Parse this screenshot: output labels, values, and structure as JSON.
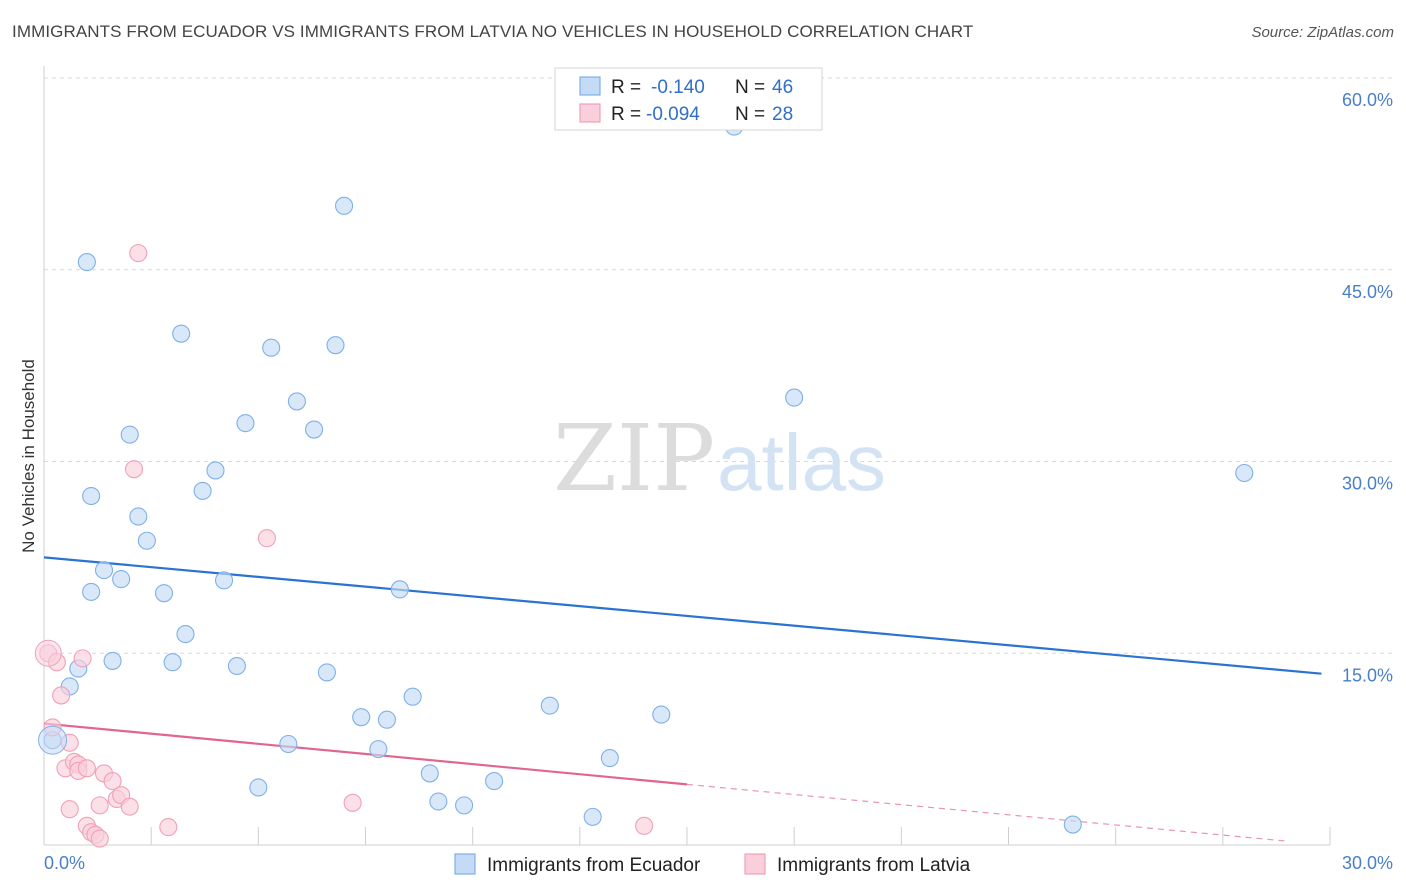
{
  "chart_data": {
    "type": "scatter",
    "title": "IMMIGRANTS FROM ECUADOR VS IMMIGRANTS FROM LATVIA NO VEHICLES IN HOUSEHOLD CORRELATION CHART",
    "source": "Source: ZipAtlas.com",
    "xlabel": "",
    "ylabel": "No Vehicles in Household",
    "xlim": [
      0,
      30
    ],
    "ylim": [
      0,
      60
    ],
    "x_tick_labels": {
      "min": "0.0%",
      "max": "30.0%"
    },
    "y_ticks": [
      {
        "value": 15,
        "label": "15.0%"
      },
      {
        "value": 30,
        "label": "30.0%"
      },
      {
        "value": 45,
        "label": "45.0%"
      },
      {
        "value": 60,
        "label": "60.0%"
      }
    ],
    "watermark": {
      "zip": "ZIP",
      "atlas": "atlas"
    },
    "stats_legend": {
      "r_label": "R =",
      "n_label": "N =",
      "rows": [
        {
          "series": "Immigrants from Ecuador",
          "r": "-0.140",
          "n": "46"
        },
        {
          "series": "Immigrants from Latvia",
          "r": "-0.094",
          "n": "28"
        }
      ]
    },
    "series": [
      {
        "name": "Immigrants from Ecuador",
        "color": "#7fb0e8",
        "fill": "#c5dbf5",
        "line_color": "#2b73d1",
        "trend": {
          "x0": 0,
          "y0": 22.5,
          "x1": 29.8,
          "y1": 13.4,
          "solid_until": 29.8
        },
        "points": [
          [
            0.2,
            8.2
          ],
          [
            0.6,
            12.4
          ],
          [
            0.8,
            13.8
          ],
          [
            1.0,
            45.6
          ],
          [
            1.1,
            27.3
          ],
          [
            1.1,
            19.8
          ],
          [
            1.4,
            21.5
          ],
          [
            1.6,
            14.4
          ],
          [
            1.8,
            20.8
          ],
          [
            2.0,
            32.1
          ],
          [
            2.2,
            25.7
          ],
          [
            2.4,
            23.8
          ],
          [
            2.8,
            19.7
          ],
          [
            3.0,
            14.3
          ],
          [
            3.2,
            40.0
          ],
          [
            3.3,
            16.5
          ],
          [
            3.7,
            27.7
          ],
          [
            4.0,
            29.3
          ],
          [
            4.2,
            20.7
          ],
          [
            4.5,
            14.0
          ],
          [
            4.7,
            33.0
          ],
          [
            5.0,
            4.5
          ],
          [
            5.3,
            38.9
          ],
          [
            5.7,
            7.9
          ],
          [
            5.9,
            34.7
          ],
          [
            6.3,
            32.5
          ],
          [
            6.6,
            13.5
          ],
          [
            6.8,
            39.1
          ],
          [
            7.0,
            50.0
          ],
          [
            7.4,
            10.0
          ],
          [
            7.8,
            7.5
          ],
          [
            8.0,
            9.8
          ],
          [
            8.3,
            20.0
          ],
          [
            8.6,
            11.6
          ],
          [
            9.0,
            5.6
          ],
          [
            9.2,
            3.4
          ],
          [
            9.8,
            3.1
          ],
          [
            10.5,
            5.0
          ],
          [
            11.8,
            10.9
          ],
          [
            12.8,
            2.2
          ],
          [
            13.2,
            6.8
          ],
          [
            14.4,
            10.2
          ],
          [
            16.1,
            56.2
          ],
          [
            17.5,
            35.0
          ],
          [
            24.0,
            1.6
          ],
          [
            28.0,
            29.1
          ]
        ]
      },
      {
        "name": "Immigrants from Latvia",
        "color": "#f0a0b8",
        "fill": "#f9cfdc",
        "line_color": "#e06690",
        "trend": {
          "x0": 0,
          "y0": 9.5,
          "x1": 29.0,
          "y1": 0.3,
          "solid_until": 15.0
        },
        "points": [
          [
            0.1,
            15.0
          ],
          [
            0.2,
            9.2
          ],
          [
            0.3,
            14.3
          ],
          [
            0.4,
            11.7
          ],
          [
            0.5,
            6.0
          ],
          [
            0.6,
            8.0
          ],
          [
            0.6,
            2.8
          ],
          [
            0.7,
            6.5
          ],
          [
            0.8,
            6.3
          ],
          [
            0.8,
            5.8
          ],
          [
            0.9,
            14.6
          ],
          [
            1.0,
            6.0
          ],
          [
            1.0,
            1.5
          ],
          [
            1.1,
            1.0
          ],
          [
            1.2,
            0.8
          ],
          [
            1.3,
            3.1
          ],
          [
            1.4,
            5.6
          ],
          [
            1.6,
            5.0
          ],
          [
            1.7,
            3.6
          ],
          [
            1.8,
            3.9
          ],
          [
            2.0,
            3.0
          ],
          [
            2.2,
            46.3
          ],
          [
            2.1,
            29.4
          ],
          [
            2.9,
            1.4
          ],
          [
            5.2,
            24.0
          ],
          [
            7.2,
            3.3
          ],
          [
            14.0,
            1.5
          ],
          [
            1.3,
            0.5
          ]
        ]
      }
    ]
  },
  "bottom_legend": [
    {
      "label": "Immigrants from Ecuador"
    },
    {
      "label": "Immigrants from Latvia"
    }
  ]
}
